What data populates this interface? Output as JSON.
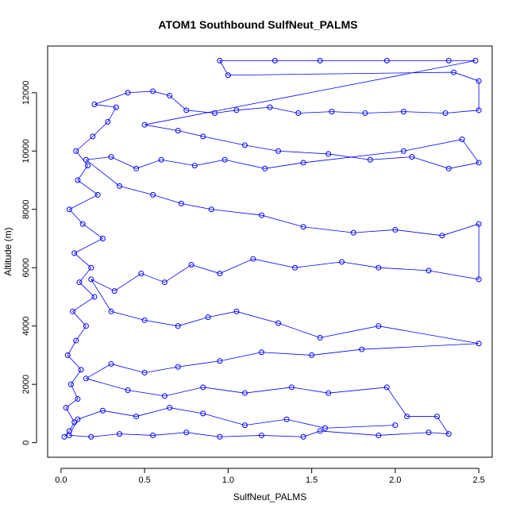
{
  "chart_data": {
    "type": "scatter",
    "title": "ATOM1 Southbound SulfNeut_PALMS",
    "xlabel": "SulfNeut_PALMS",
    "ylabel": "Altitude (m)",
    "xlim": [
      -0.08,
      2.58
    ],
    "ylim": [
      -500,
      13600
    ],
    "xticks": [
      0.0,
      0.5,
      1.0,
      1.5,
      2.0,
      2.5
    ],
    "xtick_labels": [
      "0.0",
      "0.5",
      "1.0",
      "1.5",
      "2.0",
      "2.5"
    ],
    "yticks": [
      0,
      2000,
      4000,
      6000,
      8000,
      10000,
      12000
    ],
    "ytick_labels": [
      "0",
      "2000",
      "4000",
      "6000",
      "8000",
      "10000",
      "12000"
    ],
    "grid": false,
    "legend": "none",
    "marker": "open-circle",
    "connected": true,
    "color": "#0000ff",
    "series": [
      {
        "values_note": "",
        "points": [
          [
            0.02,
            200
          ],
          [
            0.05,
            400
          ],
          [
            0.08,
            700
          ],
          [
            0.03,
            1200
          ],
          [
            0.1,
            1500
          ],
          [
            0.06,
            2000
          ],
          [
            0.12,
            2500
          ],
          [
            0.04,
            3000
          ],
          [
            0.09,
            3500
          ],
          [
            0.15,
            4000
          ],
          [
            0.07,
            4500
          ],
          [
            0.2,
            5000
          ],
          [
            0.11,
            5500
          ],
          [
            0.18,
            6000
          ],
          [
            0.08,
            6500
          ],
          [
            0.25,
            7000
          ],
          [
            0.13,
            7500
          ],
          [
            0.05,
            8000
          ],
          [
            0.22,
            8500
          ],
          [
            0.1,
            9000
          ],
          [
            0.16,
            9500
          ],
          [
            0.09,
            10000
          ],
          [
            0.19,
            10500
          ],
          [
            0.28,
            11000
          ],
          [
            0.33,
            11500
          ],
          [
            0.2,
            11600
          ],
          [
            0.4,
            12000
          ],
          [
            0.55,
            12050
          ],
          [
            0.65,
            11900
          ],
          [
            0.75,
            11400
          ],
          [
            0.92,
            11300
          ],
          [
            1.05,
            11400
          ],
          [
            1.25,
            11500
          ],
          [
            1.42,
            11300
          ],
          [
            1.62,
            11350
          ],
          [
            1.82,
            11300
          ],
          [
            2.05,
            11350
          ],
          [
            2.3,
            11300
          ],
          [
            2.5,
            11400
          ],
          [
            2.5,
            12400
          ],
          [
            2.35,
            12700
          ],
          [
            1.0,
            12600
          ],
          [
            0.95,
            13100
          ],
          [
            1.28,
            13100
          ],
          [
            1.55,
            13100
          ],
          [
            1.95,
            13100
          ],
          [
            2.32,
            13100
          ],
          [
            2.48,
            13100
          ],
          [
            0.5,
            10900
          ],
          [
            0.7,
            10700
          ],
          [
            0.85,
            10500
          ],
          [
            1.1,
            10200
          ],
          [
            1.3,
            10000
          ],
          [
            1.6,
            9900
          ],
          [
            1.85,
            9700
          ],
          [
            2.1,
            9800
          ],
          [
            2.32,
            9400
          ],
          [
            2.5,
            9600
          ],
          [
            2.4,
            10400
          ],
          [
            2.05,
            10000
          ],
          [
            1.45,
            9600
          ],
          [
            1.22,
            9400
          ],
          [
            0.98,
            9700
          ],
          [
            0.8,
            9500
          ],
          [
            0.6,
            9700
          ],
          [
            0.45,
            9400
          ],
          [
            0.3,
            9800
          ],
          [
            0.15,
            9700
          ],
          [
            0.35,
            8800
          ],
          [
            0.55,
            8500
          ],
          [
            0.72,
            8200
          ],
          [
            0.9,
            8000
          ],
          [
            1.2,
            7800
          ],
          [
            1.45,
            7400
          ],
          [
            1.75,
            7200
          ],
          [
            2.0,
            7300
          ],
          [
            2.28,
            7100
          ],
          [
            2.5,
            7500
          ],
          [
            2.5,
            5600
          ],
          [
            2.2,
            5900
          ],
          [
            1.9,
            6000
          ],
          [
            1.68,
            6200
          ],
          [
            1.4,
            6000
          ],
          [
            1.15,
            6300
          ],
          [
            0.95,
            5800
          ],
          [
            0.78,
            6100
          ],
          [
            0.62,
            5500
          ],
          [
            0.48,
            5800
          ],
          [
            0.32,
            5200
          ],
          [
            0.18,
            5600
          ],
          [
            0.3,
            4500
          ],
          [
            0.5,
            4200
          ],
          [
            0.7,
            4000
          ],
          [
            0.88,
            4300
          ],
          [
            1.05,
            4500
          ],
          [
            1.3,
            4100
          ],
          [
            1.55,
            3600
          ],
          [
            1.9,
            4000
          ],
          [
            2.5,
            3400
          ],
          [
            1.8,
            3200
          ],
          [
            1.5,
            3000
          ],
          [
            1.2,
            3100
          ],
          [
            0.95,
            2800
          ],
          [
            0.7,
            2600
          ],
          [
            0.5,
            2400
          ],
          [
            0.3,
            2700
          ],
          [
            0.15,
            2200
          ],
          [
            0.4,
            1800
          ],
          [
            0.62,
            1600
          ],
          [
            0.85,
            1900
          ],
          [
            1.1,
            1700
          ],
          [
            1.38,
            1900
          ],
          [
            1.6,
            1700
          ],
          [
            1.95,
            1900
          ],
          [
            2.07,
            900
          ],
          [
            2.25,
            900
          ],
          [
            2.32,
            300
          ],
          [
            2.2,
            350
          ],
          [
            1.9,
            250
          ],
          [
            1.55,
            400
          ],
          [
            1.45,
            200
          ],
          [
            1.2,
            250
          ],
          [
            0.95,
            200
          ],
          [
            0.75,
            350
          ],
          [
            0.55,
            250
          ],
          [
            0.35,
            300
          ],
          [
            0.18,
            200
          ],
          [
            0.05,
            250
          ],
          [
            0.1,
            800
          ],
          [
            0.25,
            1100
          ],
          [
            0.45,
            900
          ],
          [
            0.65,
            1200
          ],
          [
            0.85,
            1000
          ],
          [
            1.1,
            600
          ],
          [
            1.35,
            800
          ],
          [
            1.58,
            500
          ],
          [
            2.0,
            600
          ]
        ]
      }
    ]
  }
}
